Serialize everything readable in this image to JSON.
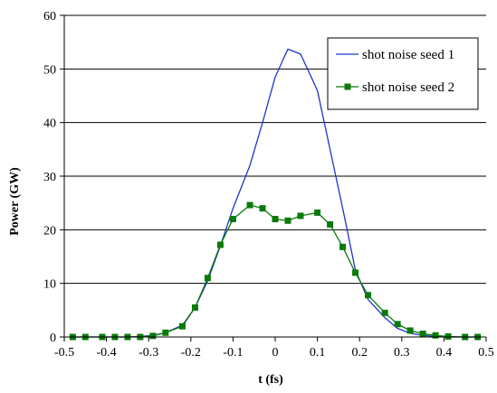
{
  "chart_data": {
    "type": "line",
    "title": "",
    "xlabel": "t (fs)",
    "ylabel": "Power (GW)",
    "xlim": [
      -0.5,
      0.5
    ],
    "ylim": [
      0,
      60
    ],
    "x_ticks": [
      "-0.5",
      "-0.4",
      "-0.3",
      "-0.2",
      "-0.1",
      "0",
      "0.1",
      "0.2",
      "0.3",
      "0.4",
      "0.5"
    ],
    "y_ticks": [
      "0",
      "10",
      "20",
      "30",
      "40",
      "50",
      "60"
    ],
    "grid": "horizontal",
    "legend_position": "top-right",
    "series": [
      {
        "name": "shot noise seed 1",
        "color": "#1f35c8",
        "marker": "none",
        "x": [
          -0.48,
          -0.45,
          -0.41,
          -0.38,
          -0.35,
          -0.32,
          -0.29,
          -0.26,
          -0.22,
          -0.19,
          -0.16,
          -0.13,
          -0.1,
          -0.06,
          -0.03,
          0.0,
          0.03,
          0.06,
          0.1,
          0.13,
          0.16,
          0.19,
          0.22,
          0.26,
          0.29,
          0.32,
          0.35,
          0.38,
          0.41,
          0.45,
          0.48
        ],
        "y": [
          0,
          0,
          0,
          0,
          0,
          0.1,
          0.3,
          0.8,
          2.2,
          5.5,
          10.5,
          17,
          24,
          32,
          40,
          48.5,
          53.7,
          52.8,
          46,
          35,
          24,
          12.5,
          7,
          3.6,
          1.6,
          0.7,
          0.3,
          0.1,
          0,
          0,
          0
        ]
      },
      {
        "name": "shot noise seed 2",
        "color": "#0a7a0a",
        "marker": "square",
        "x": [
          -0.48,
          -0.45,
          -0.41,
          -0.38,
          -0.35,
          -0.32,
          -0.29,
          -0.26,
          -0.22,
          -0.19,
          -0.16,
          -0.13,
          -0.1,
          -0.06,
          -0.03,
          0.0,
          0.03,
          0.06,
          0.1,
          0.13,
          0.16,
          0.19,
          0.22,
          0.26,
          0.29,
          0.32,
          0.35,
          0.38,
          0.41,
          0.45,
          0.48
        ],
        "y": [
          0,
          0,
          0,
          0,
          0,
          0,
          0.2,
          0.8,
          2.0,
          5.5,
          11,
          17.2,
          22,
          24.6,
          24,
          22,
          21.7,
          22.6,
          23.2,
          21,
          16.8,
          12,
          7.8,
          4.5,
          2.4,
          1.2,
          0.6,
          0.3,
          0.1,
          0,
          0
        ]
      }
    ]
  }
}
